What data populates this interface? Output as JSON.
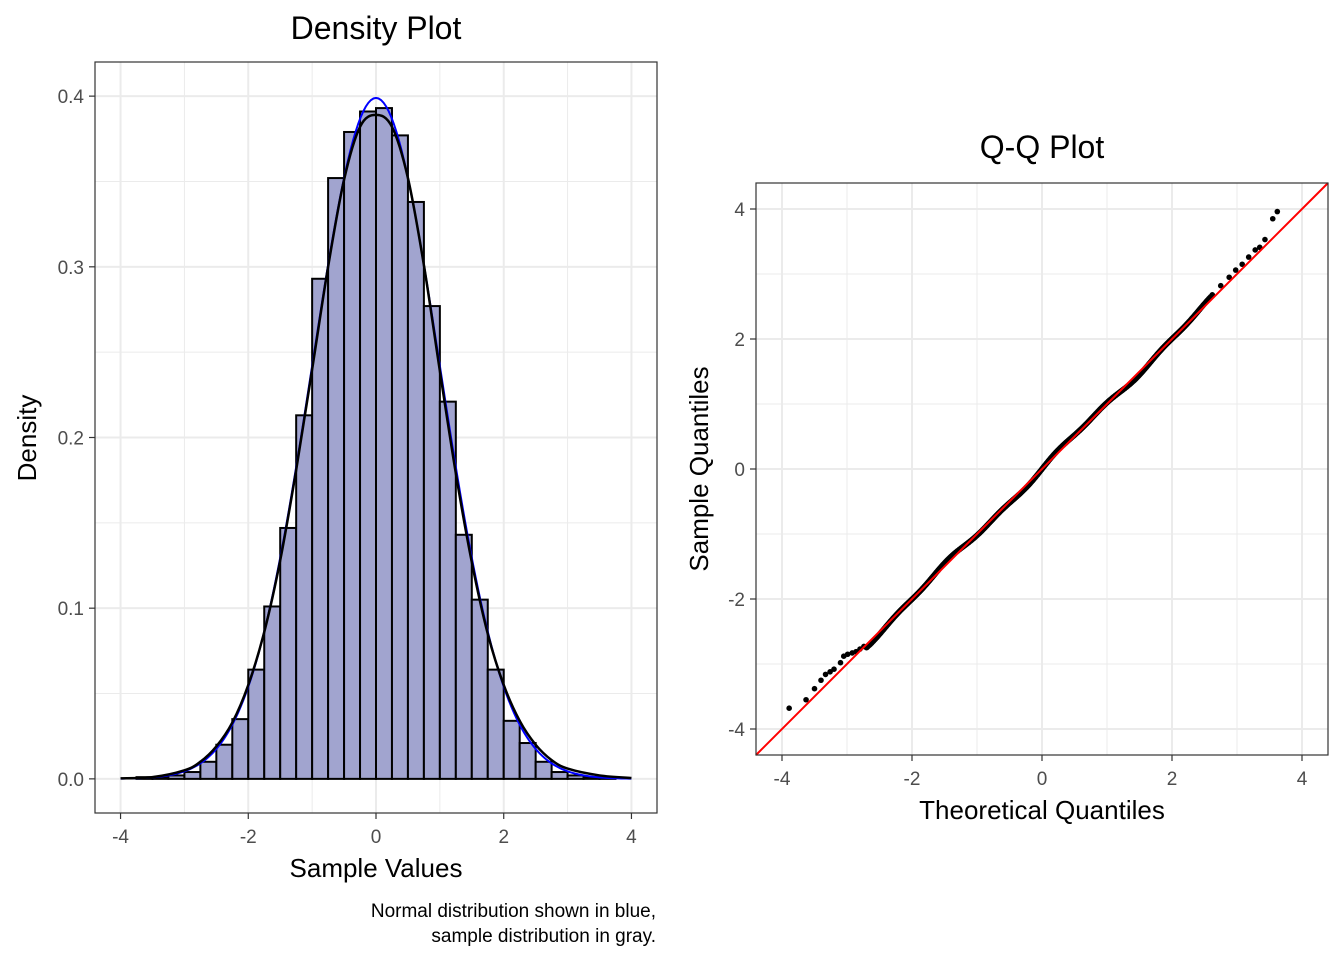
{
  "chart_data": [
    {
      "type": "histogram",
      "title": "Density Plot",
      "xlabel": "Sample Values",
      "ylabel": "Density",
      "caption": [
        "Normal distribution shown in blue,",
        "sample distribution in gray."
      ],
      "xlim": [
        -4.4,
        4.4
      ],
      "ylim": [
        -0.02,
        0.42
      ],
      "xticks": [
        -4,
        -2,
        0,
        2,
        4
      ],
      "xtick_labels": [
        "-4",
        "-2",
        "0",
        "2",
        "4"
      ],
      "yticks": [
        0.0,
        0.1,
        0.2,
        0.3,
        0.4
      ],
      "ytick_labels": [
        "0.0",
        "0.1",
        "0.2",
        "0.3",
        "0.4"
      ],
      "grid": true,
      "bin_width": 0.25,
      "bins": [
        {
          "x0": -3.75,
          "value": 0.001
        },
        {
          "x0": -3.5,
          "value": 0.001
        },
        {
          "x0": -3.25,
          "value": 0.002
        },
        {
          "x0": -3.0,
          "value": 0.004
        },
        {
          "x0": -2.75,
          "value": 0.01
        },
        {
          "x0": -2.5,
          "value": 0.02
        },
        {
          "x0": -2.25,
          "value": 0.035
        },
        {
          "x0": -2.0,
          "value": 0.064
        },
        {
          "x0": -1.75,
          "value": 0.101
        },
        {
          "x0": -1.5,
          "value": 0.147
        },
        {
          "x0": -1.25,
          "value": 0.213
        },
        {
          "x0": -1.0,
          "value": 0.293
        },
        {
          "x0": -0.75,
          "value": 0.352
        },
        {
          "x0": -0.5,
          "value": 0.379
        },
        {
          "x0": -0.25,
          "value": 0.391
        },
        {
          "x0": 0.0,
          "value": 0.393
        },
        {
          "x0": 0.25,
          "value": 0.377
        },
        {
          "x0": 0.5,
          "value": 0.338
        },
        {
          "x0": 0.75,
          "value": 0.277
        },
        {
          "x0": 1.0,
          "value": 0.221
        },
        {
          "x0": 1.25,
          "value": 0.143
        },
        {
          "x0": 1.5,
          "value": 0.105
        },
        {
          "x0": 1.75,
          "value": 0.064
        },
        {
          "x0": 2.0,
          "value": 0.034
        },
        {
          "x0": 2.25,
          "value": 0.021
        },
        {
          "x0": 2.5,
          "value": 0.01
        },
        {
          "x0": 2.75,
          "value": 0.004
        },
        {
          "x0": 3.0,
          "value": 0.002
        },
        {
          "x0": 3.25,
          "value": 0.001
        },
        {
          "x0": 3.5,
          "value": 0.001
        }
      ],
      "normal_curve": {
        "mean": 0,
        "sd": 1,
        "x_range": [
          -4,
          4
        ],
        "color": "#0000ff"
      },
      "sample_density": {
        "color": "#000000",
        "x": [
          -4,
          -3.5,
          -3,
          -2.75,
          -2.5,
          -2.25,
          -2,
          -1.75,
          -1.5,
          -1.25,
          -1,
          -0.75,
          -0.5,
          -0.25,
          0,
          0.25,
          0.5,
          0.75,
          1,
          1.25,
          1.5,
          1.75,
          2,
          2.25,
          2.5,
          2.75,
          3,
          3.5,
          4
        ],
        "y": [
          0.0003,
          0.001,
          0.005,
          0.01,
          0.019,
          0.033,
          0.055,
          0.086,
          0.128,
          0.181,
          0.24,
          0.3,
          0.351,
          0.382,
          0.389,
          0.382,
          0.352,
          0.301,
          0.239,
          0.179,
          0.127,
          0.085,
          0.055,
          0.034,
          0.02,
          0.011,
          0.006,
          0.002,
          0.0005
        ]
      },
      "fill_color": "#a1a4cf",
      "outline_color": "#000000"
    },
    {
      "type": "scatter",
      "title": "Q-Q Plot",
      "xlabel": "Theoretical Quantiles",
      "ylabel": "Sample Quantiles",
      "xlim": [
        -4.4,
        4.4
      ],
      "ylim": [
        -4.4,
        4.4
      ],
      "xticks": [
        -4,
        -2,
        0,
        2,
        4
      ],
      "xtick_labels": [
        "-4",
        "-2",
        "0",
        "2",
        "4"
      ],
      "yticks": [
        -4,
        -2,
        0,
        2,
        4
      ],
      "ytick_labels": [
        "-4",
        "-2",
        "0",
        "2",
        "4"
      ],
      "grid": true,
      "reference_line": {
        "slope": 1,
        "intercept": 0,
        "color": "#ff0000"
      },
      "point_color": "#000000",
      "points_outlier": [
        [
          -3.89,
          -3.68
        ],
        [
          -3.63,
          -3.55
        ],
        [
          -3.5,
          -3.38
        ],
        [
          -3.4,
          -3.25
        ],
        [
          -3.33,
          -3.16
        ],
        [
          -3.26,
          -3.12
        ],
        [
          -3.2,
          -3.08
        ],
        [
          -3.1,
          -2.98
        ],
        [
          -3.05,
          -2.88
        ],
        [
          -2.99,
          -2.85
        ],
        [
          -2.92,
          -2.83
        ],
        [
          -2.86,
          -2.81
        ],
        [
          -2.8,
          -2.77
        ],
        [
          -2.74,
          -2.73
        ],
        [
          2.62,
          2.68
        ],
        [
          2.75,
          2.82
        ],
        [
          2.88,
          2.95
        ],
        [
          2.98,
          3.06
        ],
        [
          3.08,
          3.15
        ],
        [
          3.18,
          3.26
        ],
        [
          3.28,
          3.37
        ],
        [
          3.35,
          3.41
        ],
        [
          3.43,
          3.53
        ],
        [
          3.55,
          3.85
        ],
        [
          3.62,
          3.96
        ]
      ],
      "points_dense_range": [
        -2.7,
        2.6
      ],
      "points_dense_count": 900
    }
  ]
}
